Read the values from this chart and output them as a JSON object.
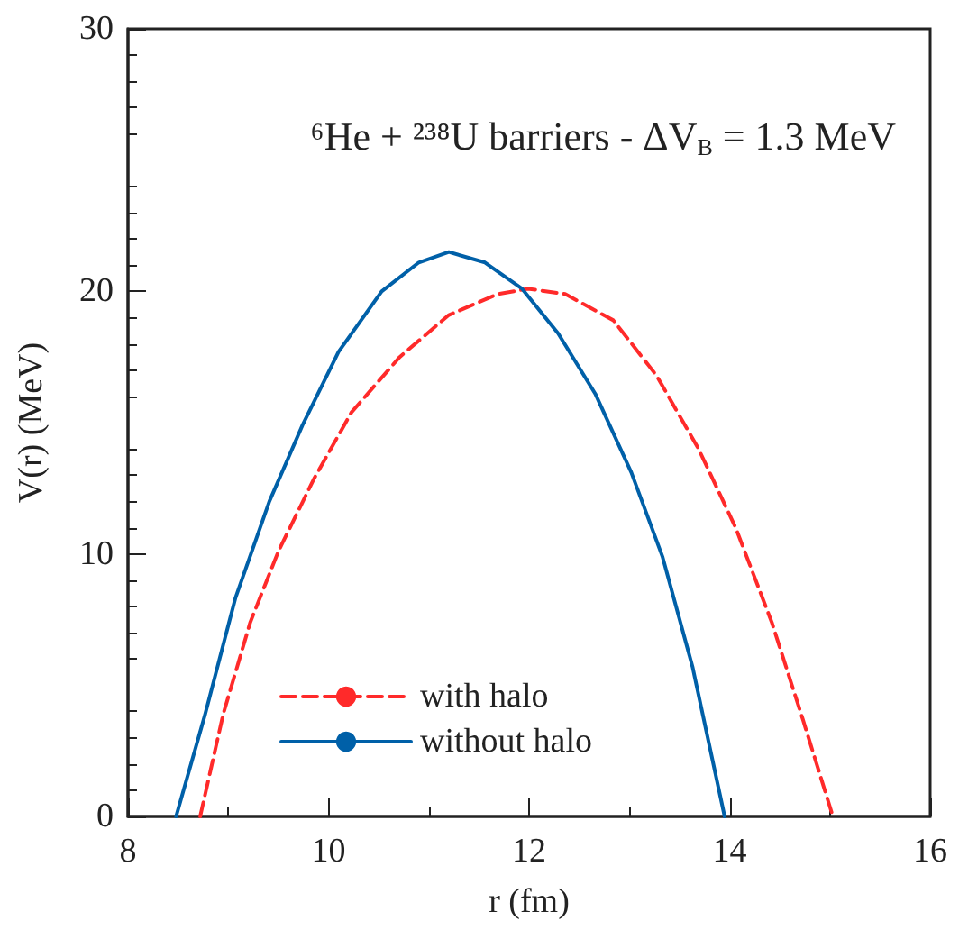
{
  "chart_data": {
    "type": "line",
    "title": "⁶He + ²³⁸U barriers - ΔV$_{B}$ = 1.3 MeV",
    "xlabel": "r (fm)",
    "ylabel": "V(r) (MeV)",
    "xlim": [
      8,
      16
    ],
    "xticks": [
      8,
      10,
      12,
      14,
      16
    ],
    "ylim": [
      0,
      30
    ],
    "yticks": [
      0,
      10,
      20,
      30
    ],
    "grid": false,
    "legend": "bottom",
    "marker": "none",
    "series": [
      {
        "name": "with halo",
        "color": "#ff2a2a",
        "line_style": "dashed",
        "x": [
          8.72,
          8.95,
          9.22,
          9.5,
          9.86,
          10.23,
          10.71,
          11.2,
          11.69,
          11.99,
          12.36,
          12.84,
          13.27,
          13.69,
          14.06,
          14.42,
          14.73,
          15.03
        ],
        "values": [
          0,
          3.9,
          7.4,
          10.1,
          12.9,
          15.4,
          17.5,
          19.1,
          19.9,
          20.1,
          19.9,
          18.9,
          16.8,
          14.0,
          11.0,
          7.4,
          3.7,
          0
        ]
      },
      {
        "name": "without halo",
        "color": "#0060a8",
        "line_style": "solid",
        "x": [
          8.48,
          8.77,
          9.07,
          9.41,
          9.74,
          10.1,
          10.53,
          10.9,
          11.2,
          11.56,
          11.93,
          12.29,
          12.66,
          13.02,
          13.33,
          13.63,
          13.95
        ],
        "values": [
          0,
          3.9,
          8.3,
          12.0,
          14.9,
          17.7,
          20.0,
          21.1,
          21.5,
          21.1,
          20.1,
          18.4,
          16.1,
          13.1,
          9.9,
          5.7,
          0
        ]
      }
    ]
  }
}
